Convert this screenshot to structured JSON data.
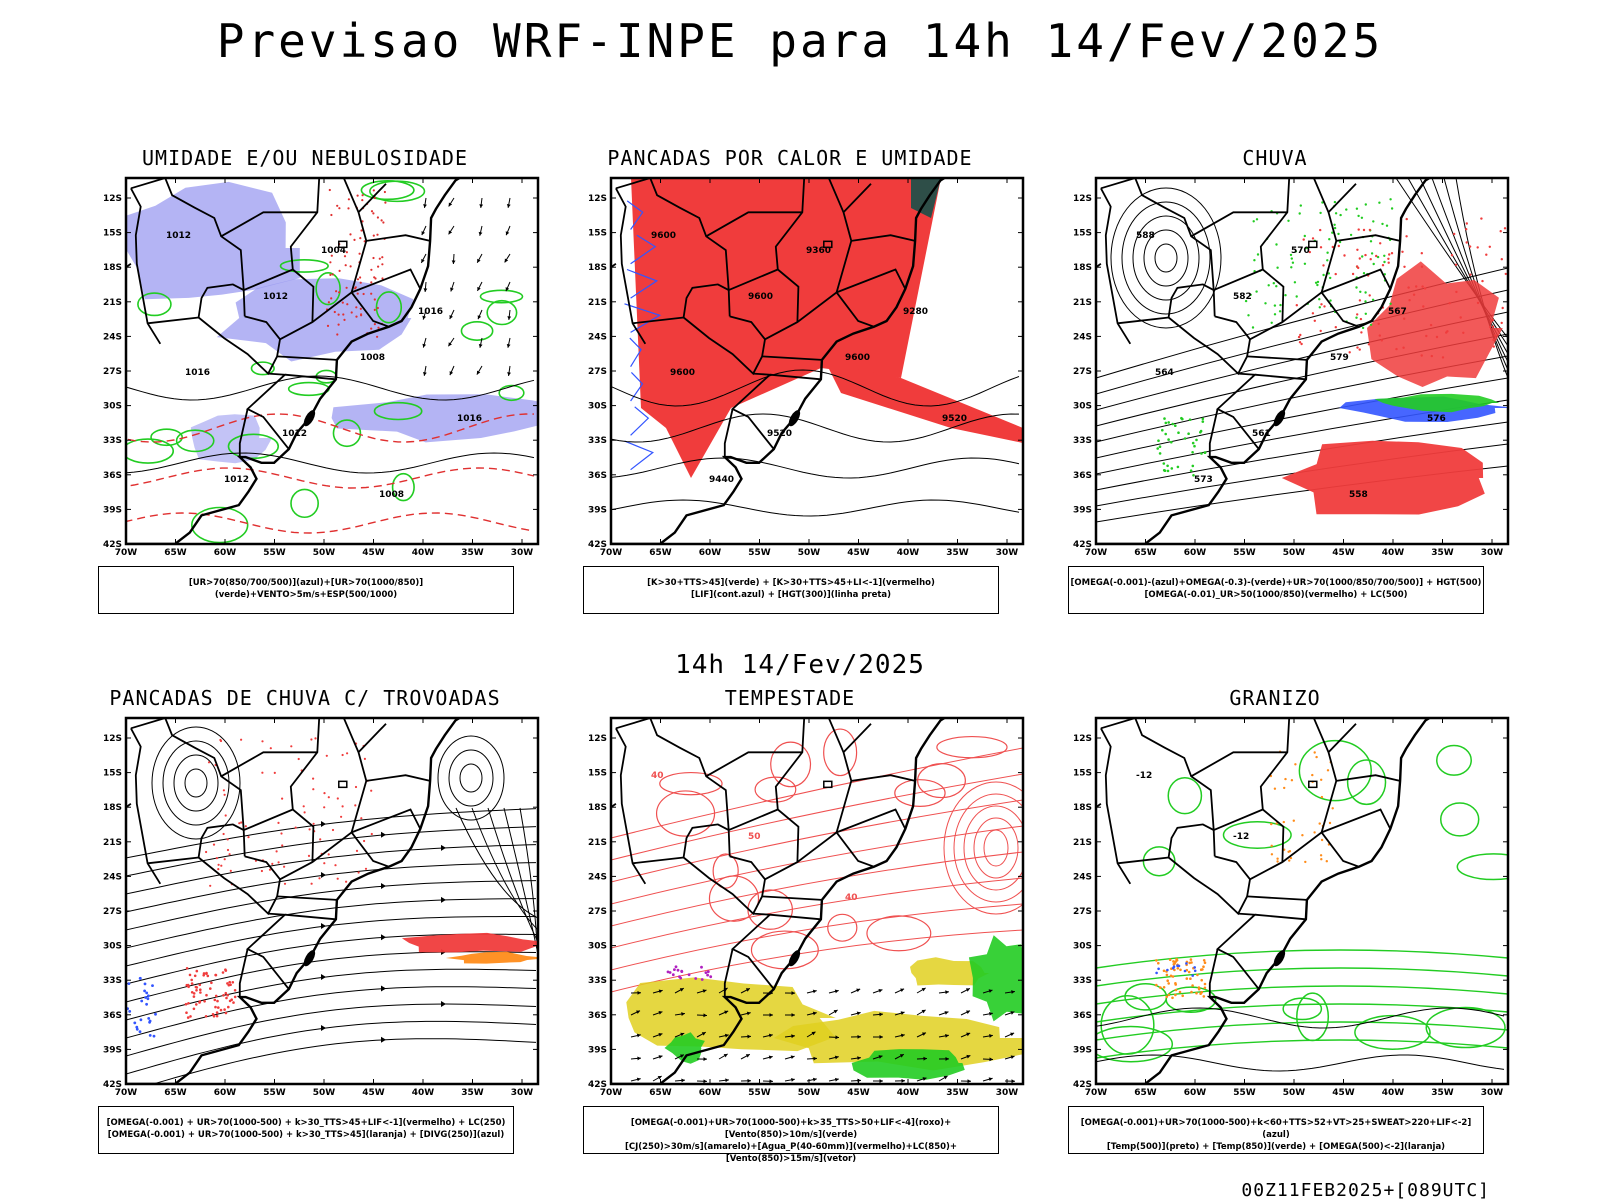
{
  "header": {
    "title": "Previsao WRF-INPE  para 14h 14/Fev/2025"
  },
  "middle": {
    "subtitle": "14h 14/Fev/2025"
  },
  "footer": {
    "run_label": "00Z11FEB2025+[089UTC]"
  },
  "axes": {
    "lat_labels": [
      "12S",
      "15S",
      "18S",
      "21S",
      "24S",
      "27S",
      "30S",
      "33S",
      "36S",
      "39S",
      "42S"
    ],
    "lon_labels": [
      "70W",
      "65W",
      "60W",
      "55W",
      "50W",
      "45W",
      "40W",
      "35W",
      "30W"
    ]
  },
  "panels": [
    {
      "title": "UMIDADE E/OU NEBULOSIDADE",
      "legend": [
        "[UR>70(850/700/500)](azul)+[UR>70(1000/850)](verde)+VENTO>5m/s+ESP(500/1000)"
      ],
      "contour_labels": [
        "1012",
        "1012",
        "1008",
        "1016",
        "1012",
        "1004",
        "1016",
        "1016",
        "1012",
        "1008"
      ]
    },
    {
      "title": "PANCADAS POR CALOR E UMIDADE",
      "legend": [
        "[K>30+TTS>45](verde) + [K>30+TTS>45+LI<-1](vermelho)",
        "[LIF](cont.azul) + [HGT(300)](linha preta)"
      ],
      "contour_labels": [
        "9600",
        "9600",
        "9600",
        "9520",
        "9440",
        "9360",
        "9280",
        "9600",
        "9520"
      ]
    },
    {
      "title": "CHUVA",
      "legend": [
        "[OMEGA(-0.001)-(azul)+OMEGA(-0.3)-(verde)+UR>70(1000/850/700/500)] + HGT(500)",
        "[OMEGA(-0.01)_UR>50(1000/850)(vermelho) + LC(500)"
      ],
      "contour_labels": [
        "588",
        "582",
        "579",
        "576",
        "573",
        "570",
        "567",
        "564",
        "561",
        "558"
      ]
    },
    {
      "title": "PANCADAS DE CHUVA C/ TROVOADAS",
      "legend": [
        "[OMEGA(-0.001) + UR>70(1000-500) + k>30_TTS>45+LIF<-1](vermelho) + LC(250)",
        "[OMEGA(-0.001) + UR>70(1000-500) + k>30_TTS>45](laranja) + [DIVG(250)](azul)"
      ],
      "contour_labels": []
    },
    {
      "title": "TEMPESTADE",
      "legend": [
        "[OMEGA(-0.001)+UR>70(1000-500)+k>35_TTS>50+LIF<-4](roxo)+[Vento(850)>10m/s](verde)",
        "[CJ(250)>30m/s](amarelo)+[Agua_P(40-60mm)](vermelho)+LC(850)+[Vento(850)>15m/s](vetor)"
      ],
      "contour_labels": [
        "40",
        "50",
        "40"
      ]
    },
    {
      "title": "GRANIZO",
      "legend": [
        "[OMEGA(-0.001)+UR>70(1000-500)+k<60+TTS>52+VT>25+SWEAT>220+LIF<-2](azul)",
        "[Temp(500)](preto) + [Temp(850)](verde) + [OMEGA(500)<-2](laranja)"
      ],
      "contour_labels": [
        "-12",
        "-12"
      ]
    }
  ]
}
